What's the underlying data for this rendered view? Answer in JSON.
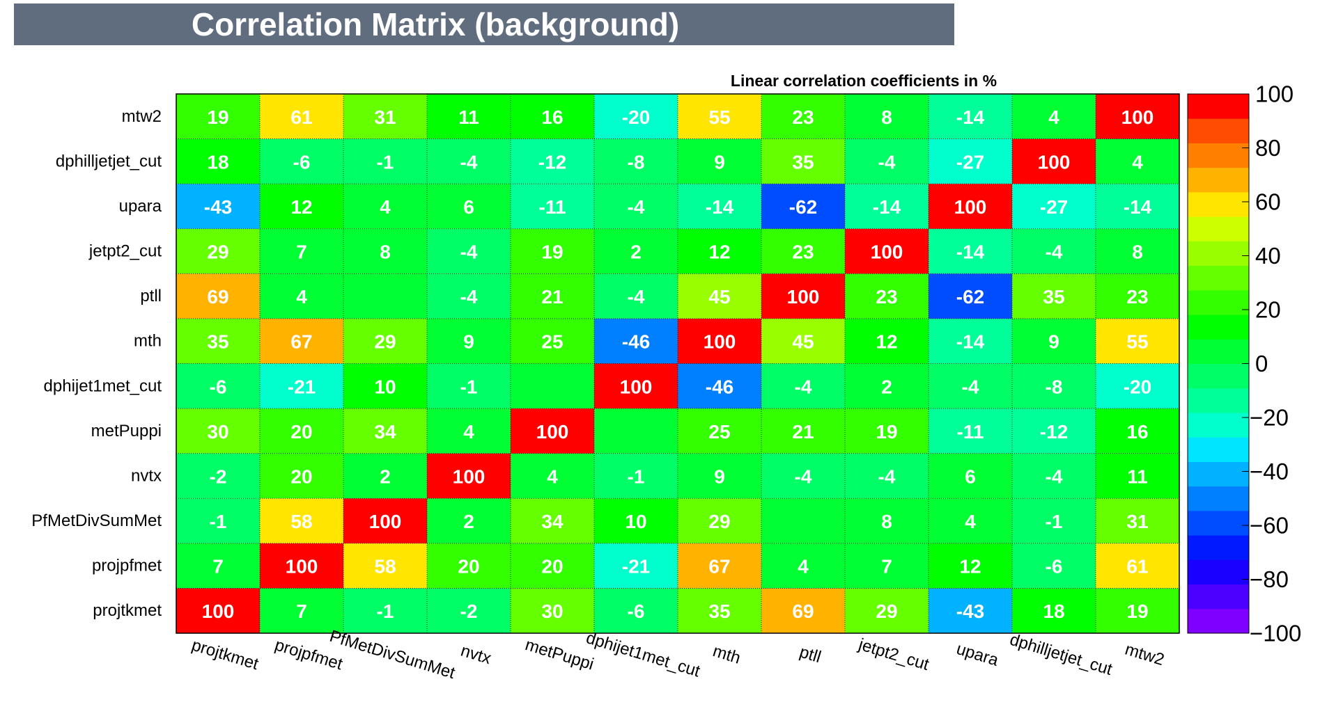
{
  "chart_data": {
    "type": "heatmap",
    "title": "Correlation Matrix (background)",
    "subtitle": "Linear correlation coefficients in %",
    "x_labels": [
      "projtkmet",
      "projpfmet",
      "PfMetDivSumMet",
      "nvtx",
      "metPuppi",
      "dphijet1met_cut",
      "mth",
      "ptll",
      "jetpt2_cut",
      "upara",
      "dphilljetjet_cut",
      "mtw2"
    ],
    "y_labels": [
      "projtkmet",
      "projpfmet",
      "PfMetDivSumMet",
      "nvtx",
      "metPuppi",
      "dphijet1met_cut",
      "mth",
      "ptll",
      "jetpt2_cut",
      "upara",
      "dphilljetjet_cut",
      "mtw2"
    ],
    "z_range": [
      -100,
      100
    ],
    "z_ticks": [
      "100",
      "80",
      "60",
      "40",
      "20",
      "0",
      "−20",
      "−40",
      "−60",
      "−80",
      "−100"
    ],
    "matrix": [
      [
        100,
        7,
        -1,
        -2,
        30,
        -6,
        35,
        69,
        29,
        -43,
        18,
        19
      ],
      [
        7,
        100,
        58,
        20,
        20,
        -21,
        67,
        4,
        7,
        12,
        -6,
        61
      ],
      [
        -1,
        58,
        100,
        2,
        34,
        10,
        29,
        null,
        8,
        4,
        -1,
        31
      ],
      [
        -2,
        20,
        2,
        100,
        4,
        -1,
        9,
        -4,
        -4,
        6,
        -4,
        11
      ],
      [
        30,
        20,
        34,
        4,
        100,
        null,
        25,
        21,
        19,
        -11,
        -12,
        16
      ],
      [
        -6,
        -21,
        10,
        -1,
        null,
        100,
        -46,
        -4,
        2,
        -4,
        -8,
        -20
      ],
      [
        35,
        67,
        29,
        9,
        25,
        -46,
        100,
        45,
        12,
        -14,
        9,
        55
      ],
      [
        69,
        4,
        null,
        -4,
        21,
        -4,
        45,
        100,
        23,
        -62,
        35,
        23
      ],
      [
        29,
        7,
        8,
        -4,
        19,
        2,
        12,
        23,
        100,
        -14,
        -4,
        8
      ],
      [
        -43,
        12,
        4,
        6,
        -11,
        -4,
        -14,
        -62,
        -14,
        100,
        -27,
        -14
      ],
      [
        18,
        -6,
        -1,
        -4,
        -12,
        -8,
        9,
        35,
        -4,
        -27,
        100,
        4
      ],
      [
        19,
        61,
        31,
        11,
        16,
        -20,
        55,
        23,
        8,
        -14,
        4,
        100
      ]
    ],
    "palette": [
      "#7f00ff",
      "#4c00ff",
      "#1900ff",
      "#0019ff",
      "#004cff",
      "#007fff",
      "#00b2ff",
      "#00e5ff",
      "#00ffcc",
      "#00ff99",
      "#00ff66",
      "#00ff33",
      "#00ff00",
      "#33ff00",
      "#66ff00",
      "#99ff00",
      "#ccff00",
      "#ffe500",
      "#ffb200",
      "#ff7f00",
      "#ff4c00",
      "#ff0000"
    ]
  }
}
